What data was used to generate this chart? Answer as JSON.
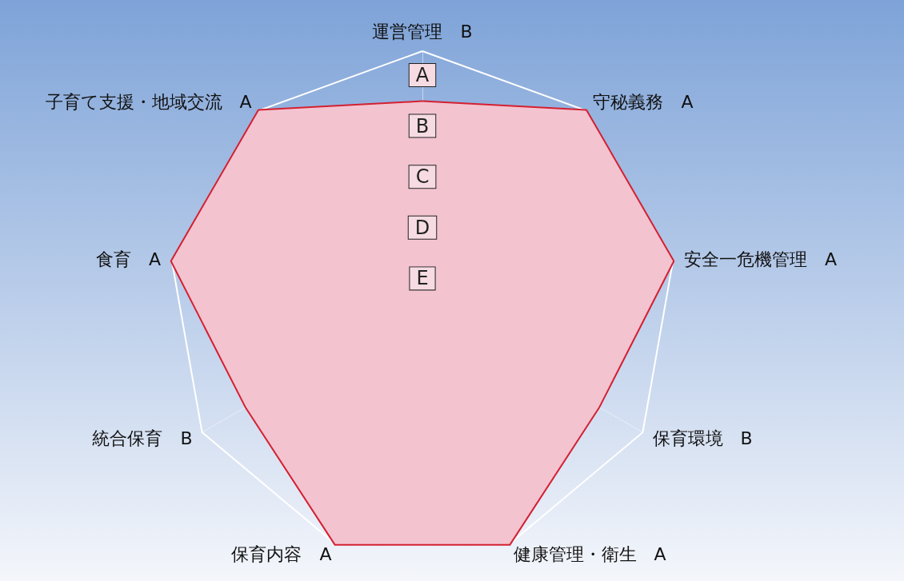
{
  "chart_data": {
    "type": "radar",
    "categories": [
      "運営管理　B",
      "守秘義務　A",
      "安全一危機管理　A",
      "保育環境　B",
      "健康管理・衛生　A",
      "保育内容　A",
      "統合保育　B",
      "食育　A",
      "子育て支援・地域交流　A"
    ],
    "series": [
      {
        "color": "#d42030",
        "values": [
          4,
          5,
          5,
          4,
          5,
          5,
          4,
          5,
          5
        ]
      }
    ],
    "ylim": [
      0,
      5
    ],
    "yticks": [
      {
        "value": 5,
        "label": "A"
      },
      {
        "value": 4,
        "label": "B"
      },
      {
        "value": 3,
        "label": "C"
      },
      {
        "value": 2,
        "label": "D"
      },
      {
        "value": 1,
        "label": "E"
      }
    ],
    "grid": true,
    "legend": false
  }
}
